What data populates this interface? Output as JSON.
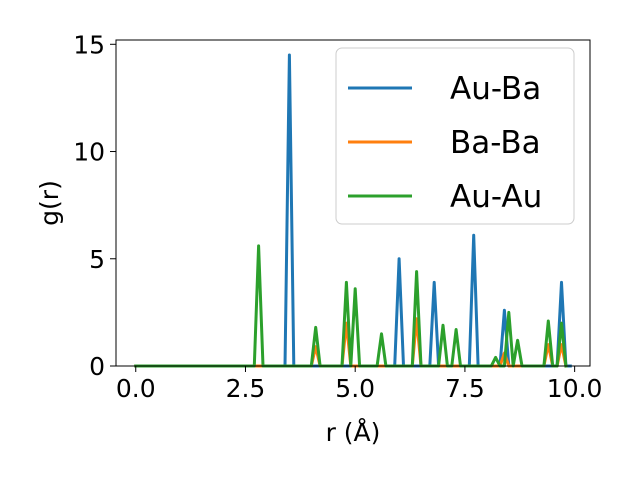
{
  "chart_data": {
    "type": "line",
    "xlabel": "r (Å)",
    "ylabel": "g(r)",
    "xlim": [
      -0.45,
      10.35
    ],
    "ylim": [
      0,
      15.2
    ],
    "xticks": [
      0.0,
      2.5,
      5.0,
      7.5,
      10.0
    ],
    "xtick_labels": [
      "0.0",
      "2.5",
      "5.0",
      "7.5",
      "10.0"
    ],
    "yticks": [
      0,
      5,
      10,
      15
    ],
    "ytick_labels": [
      "0",
      "5",
      "10",
      "15"
    ],
    "grid": false,
    "legend": {
      "placement": "top-right"
    },
    "series": [
      {
        "name": "Au-Ba",
        "color": "#1f77b4",
        "x": [
          0.0,
          3.4,
          3.5,
          3.6,
          5.9,
          6.0,
          6.1,
          6.7,
          6.8,
          6.9,
          7.6,
          7.7,
          7.8,
          8.3,
          8.4,
          8.5,
          9.6,
          9.7,
          9.8,
          9.9
        ],
        "y": [
          0,
          0,
          14.5,
          0,
          0,
          5.0,
          0,
          0,
          3.9,
          0,
          0,
          6.1,
          0,
          0,
          2.6,
          0,
          0,
          3.9,
          0,
          0
        ]
      },
      {
        "name": "Ba-Ba",
        "color": "#ff7f0e",
        "x": [
          0.0,
          4.0,
          4.1,
          4.2,
          4.7,
          4.8,
          4.9,
          6.3,
          6.4,
          6.5,
          8.3,
          8.4,
          8.5,
          9.3,
          9.4,
          9.5,
          9.6,
          9.7,
          9.8
        ],
        "y": [
          0,
          0,
          0.9,
          0,
          0,
          2.0,
          0,
          0,
          2.2,
          0,
          0,
          0.6,
          0,
          0,
          1.0,
          0,
          0,
          1.0,
          0
        ]
      },
      {
        "name": "Au-Au",
        "color": "#2ca02c",
        "x": [
          0.0,
          2.7,
          2.8,
          2.9,
          4.0,
          4.1,
          4.2,
          4.7,
          4.8,
          4.9,
          5.0,
          5.1,
          5.5,
          5.6,
          5.7,
          6.3,
          6.4,
          6.5,
          6.9,
          7.0,
          7.1,
          7.2,
          7.3,
          7.4,
          8.1,
          8.2,
          8.3,
          8.4,
          8.5,
          8.6,
          8.7,
          8.8,
          9.3,
          9.4,
          9.5,
          9.6,
          9.7,
          9.8
        ],
        "y": [
          0,
          0,
          5.6,
          0,
          0,
          1.8,
          0,
          0,
          3.9,
          0,
          3.6,
          0,
          0,
          1.5,
          0,
          0,
          4.4,
          0,
          0,
          1.9,
          0,
          0,
          1.7,
          0,
          0,
          0.4,
          0,
          0,
          2.5,
          0,
          1.2,
          0,
          0,
          2.1,
          0,
          0,
          2.0,
          0
        ]
      }
    ]
  }
}
